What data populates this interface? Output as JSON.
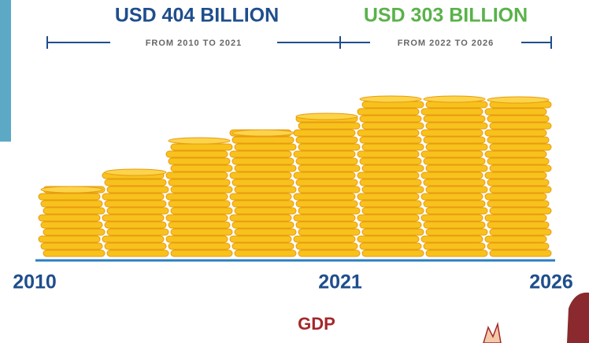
{
  "header": {
    "left": {
      "amount": "USD 404 BILLION",
      "period": "FROM 2010 TO 2021"
    },
    "right": {
      "amount": "USD 303 BILLION",
      "period": "FROM 2022 TO 2026"
    }
  },
  "axis": {
    "labels": [
      "2010",
      "2021",
      "2026"
    ]
  },
  "caption": "GDP"
}
